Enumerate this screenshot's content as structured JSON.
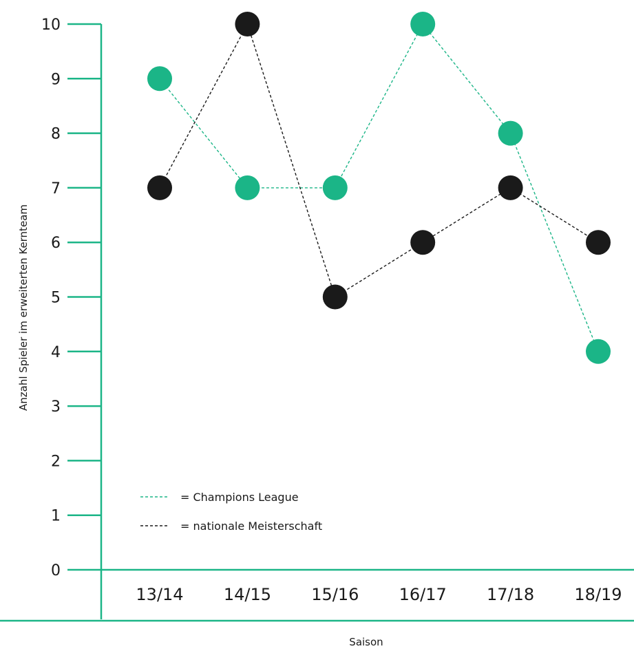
{
  "chart_data": {
    "type": "line",
    "title": "",
    "xlabel": "Saison",
    "ylabel": "Anzahl Spieler im erweiterten Kernteam",
    "categories": [
      "13/14",
      "14/15",
      "15/16",
      "16/17",
      "17/18",
      "18/19"
    ],
    "ylim": [
      0,
      10
    ],
    "yticks": [
      0,
      1,
      2,
      3,
      4,
      5,
      6,
      7,
      8,
      9,
      10
    ],
    "grid": false,
    "legend_position": "bottom-left",
    "series": [
      {
        "name": "= Champions League",
        "color": "#1bb587",
        "values": [
          9,
          7,
          7,
          10,
          8,
          4
        ]
      },
      {
        "name": "= nationale Meisterschaft",
        "color": "#1a1a1a",
        "values": [
          7,
          10,
          5,
          6,
          7,
          6
        ]
      }
    ],
    "axis_color": "#1bb587"
  }
}
